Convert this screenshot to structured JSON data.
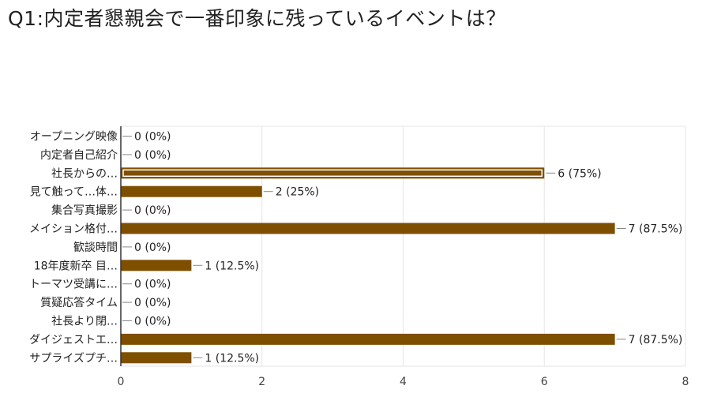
{
  "title": "Q1:内定者懇親会で一番印象に残っているイベントは？",
  "chart_data": {
    "type": "bar",
    "orientation": "horizontal",
    "title": "Q1:内定者懇親会で一番印象に残っているイベントは？",
    "categories": [
      "オープニング映像",
      "内定者自己紹介",
      "社長からの…",
      "見て触って…体…",
      "集合写真撮影",
      "メイション格付…",
      "歓談時間",
      "18年度新卒 目…",
      "トーマツ受講に…",
      "質疑応答タイム",
      "社長より閉…",
      "ダイジェストエ…",
      "サプライズプチ…"
    ],
    "values": [
      0,
      0,
      6,
      2,
      0,
      7,
      0,
      1,
      0,
      0,
      0,
      7,
      1
    ],
    "value_labels": [
      "0 (0%)",
      "0 (0%)",
      "6 (75%)",
      "2 (25%)",
      "0 (0%)",
      "7 (87.5%)",
      "0 (0%)",
      "1 (12.5%)",
      "0 (0%)",
      "0 (0%)",
      "0 (0%)",
      "7 (87.5%)",
      "1 (12.5%)"
    ],
    "highlighted_index": 2,
    "xlim": [
      0,
      8
    ],
    "xticks": [
      "0",
      "2",
      "4",
      "6",
      "8"
    ],
    "xlabel": "",
    "ylabel": "",
    "grid": true,
    "legend": "none",
    "colors": {
      "bar": "#7f4f00",
      "highlight_inner": "#ffffff",
      "grid": "#e6e6e6",
      "axis": "#333333",
      "connector": "#888888"
    }
  }
}
